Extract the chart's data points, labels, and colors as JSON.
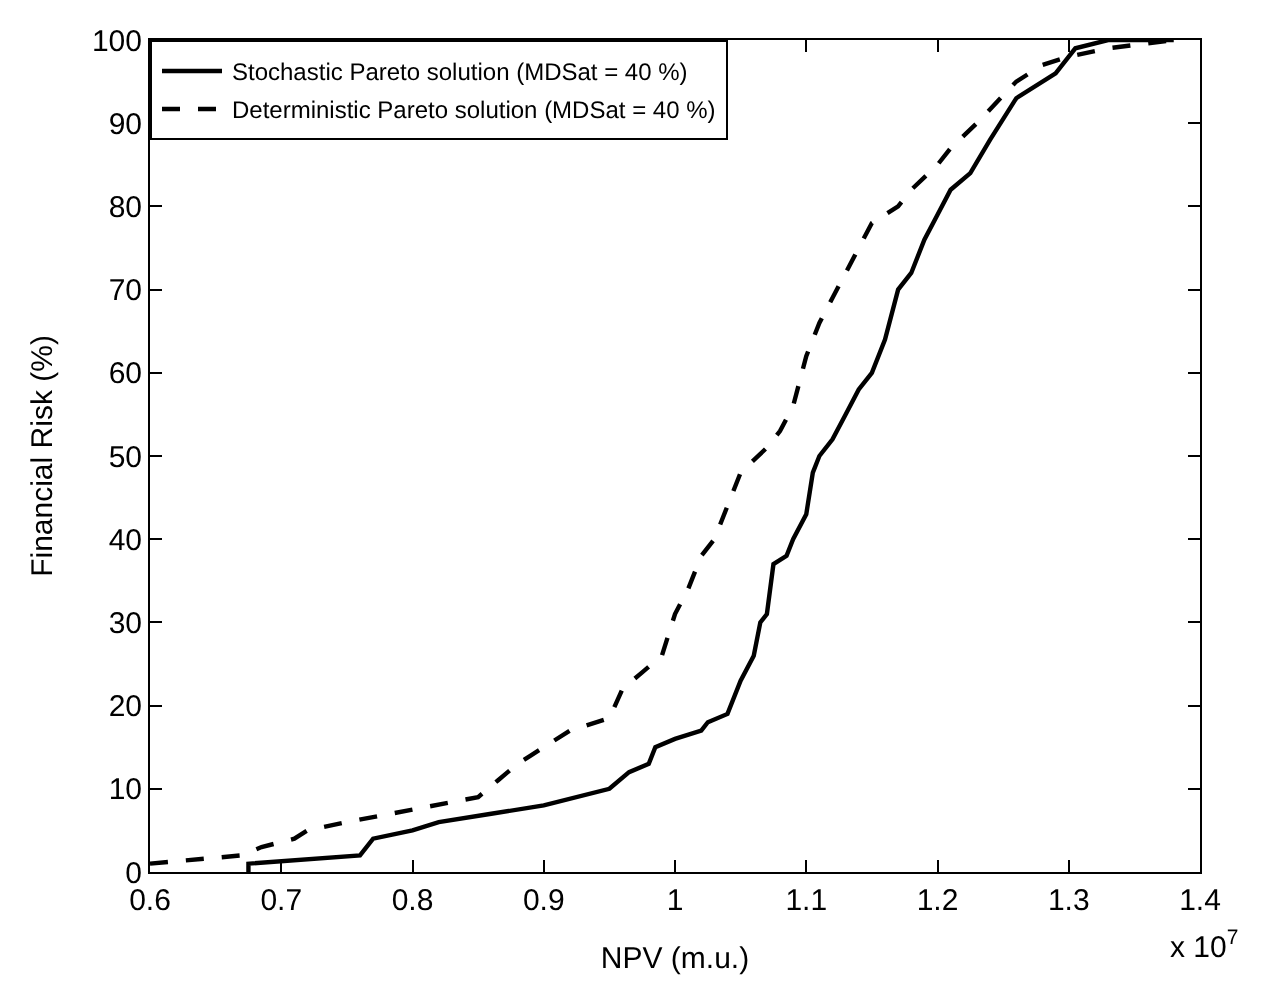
{
  "chart_data": {
    "type": "line",
    "xlabel": "NPV (m.u.)",
    "ylabel": "Financial Risk (%)",
    "annotations": [
      "x 10$^{7}$"
    ],
    "xlim": [
      0.6,
      1.4
    ],
    "xticks": [
      0.6,
      0.7,
      0.8,
      0.9,
      1,
      1.1,
      1.2,
      1.3,
      1.4
    ],
    "ylim": [
      0,
      100
    ],
    "yticks": [
      0,
      10,
      20,
      30,
      40,
      50,
      60,
      70,
      80,
      90,
      100
    ],
    "legend": "top left",
    "marker": "none",
    "series": [
      {
        "name": "Stochastic Pareto solution (MDSat = 40 %)",
        "color": "#000000",
        "line_style": "solid",
        "x": [
          0.675,
          0.675,
          0.76,
          0.77,
          0.8,
          0.82,
          0.86,
          0.9,
          0.95,
          0.965,
          0.98,
          0.985,
          1.0,
          1.02,
          1.025,
          1.04,
          1.05,
          1.06,
          1.065,
          1.07,
          1.075,
          1.085,
          1.09,
          1.1,
          1.105,
          1.11,
          1.12,
          1.13,
          1.14,
          1.15,
          1.16,
          1.17,
          1.18,
          1.19,
          1.2,
          1.21,
          1.225,
          1.24,
          1.26,
          1.29,
          1.3,
          1.305,
          1.33,
          1.38
        ],
        "values": [
          0,
          1,
          2,
          4,
          5,
          6,
          7,
          8,
          10,
          12,
          13,
          15,
          16,
          17,
          18,
          19,
          23,
          26,
          30,
          31,
          37,
          38,
          40,
          43,
          48,
          50,
          52,
          55,
          58,
          60,
          64,
          70,
          72,
          76,
          79,
          82,
          84,
          88,
          93,
          96,
          98,
          99,
          100,
          100
        ]
      },
      {
        "name": "Deterministic Pareto solution (MDSat = 40 %)",
        "color": "#000000",
        "line_style": "dashed",
        "x": [
          0.6,
          0.67,
          0.685,
          0.71,
          0.72,
          0.75,
          0.8,
          0.85,
          0.865,
          0.88,
          0.89,
          0.92,
          0.95,
          0.96,
          0.975,
          0.99,
          1.0,
          1.01,
          1.02,
          1.03,
          1.04,
          1.05,
          1.07,
          1.08,
          1.09,
          1.1,
          1.11,
          1.13,
          1.14,
          1.15,
          1.17,
          1.18,
          1.2,
          1.21,
          1.23,
          1.26,
          1.28,
          1.3,
          1.33,
          1.38
        ],
        "values": [
          1,
          2,
          3,
          4,
          5,
          6,
          7.5,
          9,
          11,
          13,
          14,
          17,
          18.5,
          22,
          24,
          26,
          31,
          34,
          38,
          40,
          44,
          48,
          51,
          53,
          56,
          62,
          66,
          72,
          75,
          78,
          80,
          82,
          85,
          87,
          90,
          95,
          97,
          98,
          99,
          100
        ]
      }
    ]
  }
}
